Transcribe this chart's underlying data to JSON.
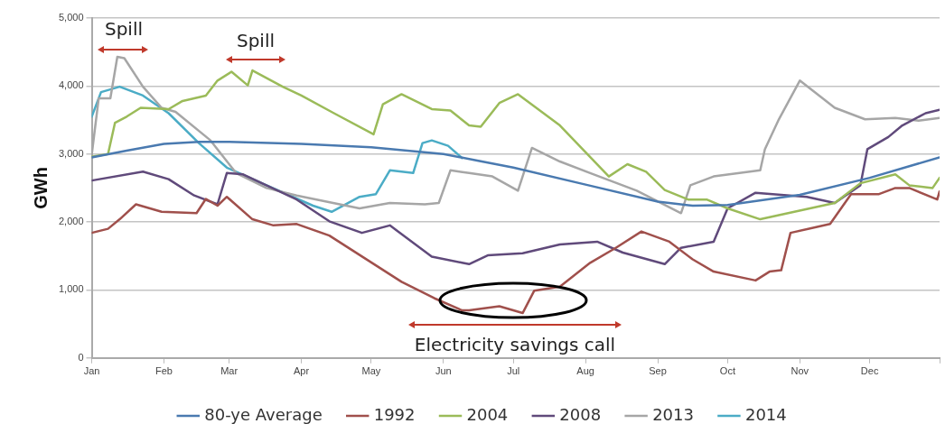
{
  "chart_data": {
    "type": "line",
    "ylabel": "GWh",
    "xlim": [
      "--01-01",
      "--12-31"
    ],
    "ylim": [
      0,
      5000
    ],
    "xticks": [
      {
        "value": "--01-01",
        "label": "Jan"
      },
      {
        "value": "--02-01",
        "label": "Feb"
      },
      {
        "value": "--03-01",
        "label": "Mar"
      },
      {
        "value": "--04-01",
        "label": "Apr"
      },
      {
        "value": "--05-01",
        "label": "May"
      },
      {
        "value": "--06-01",
        "label": "Jun"
      },
      {
        "value": "--07-01",
        "label": "Jul"
      },
      {
        "value": "--08-01",
        "label": "Aug"
      },
      {
        "value": "--09-01",
        "label": "Sep"
      },
      {
        "value": "--10-01",
        "label": "Oct"
      },
      {
        "value": "--11-01",
        "label": "Nov"
      },
      {
        "value": "--12-01",
        "label": "Dec"
      },
      {
        "value": "--12-31",
        "label": null
      }
    ],
    "yticks": [
      {
        "value": 0,
        "label": "0"
      },
      {
        "value": 1000,
        "label": "1,000"
      },
      {
        "value": 2000,
        "label": "2,000"
      },
      {
        "value": 3000,
        "label": "3,000"
      },
      {
        "value": 4000,
        "label": "4,000"
      },
      {
        "value": 5000,
        "label": "5,000"
      }
    ],
    "grid": "y",
    "legend": "bottom",
    "marker": "none",
    "line_style": "solid",
    "annotations": [
      "Spill",
      "Spill",
      "Electricity savings call"
    ],
    "series": [
      {
        "name": "80-ye Average",
        "color": "#4a7ab0",
        "x": [
          "--01-01",
          "--01-16",
          "--02-01",
          "--02-16",
          "--03-01",
          "--04-01",
          "--05-01",
          "--06-01",
          "--06-16",
          "--07-01",
          "--08-01",
          "--09-01",
          "--09-16",
          "--10-01",
          "--11-01",
          "--12-01",
          "--12-31"
        ],
        "values": [
          2950,
          3050,
          3150,
          3180,
          3180,
          3150,
          3100,
          3000,
          2900,
          2800,
          2550,
          2300,
          2240,
          2250,
          2400,
          2650,
          2950
        ]
      },
      {
        "name": "1992",
        "color": "#a0504c",
        "x": [
          "--01-01",
          "--01-08",
          "--01-13",
          "--01-20",
          "--01-31",
          "--02-15",
          "--02-19",
          "--02-24",
          "--02-28",
          "--03-11",
          "--03-20",
          "--03-30",
          "--04-13",
          "--05-14",
          "--05-28",
          "--06-09",
          "--06-12",
          "--06-25",
          "--07-05",
          "--07-10",
          "--07-21",
          "--08-03",
          "--08-14",
          "--08-25",
          "--09-06",
          "--09-16",
          "--09-25",
          "--10-13",
          "--10-19",
          "--10-24",
          "--10-28",
          "--11-14",
          "--11-23",
          "--12-05",
          "--12-12",
          "--12-18",
          "--12-30",
          "--12-31"
        ],
        "values": [
          1840,
          1900,
          2040,
          2260,
          2150,
          2130,
          2340,
          2240,
          2370,
          2040,
          1950,
          1970,
          1800,
          1120,
          880,
          700,
          700,
          760,
          660,
          990,
          1050,
          1400,
          1620,
          1860,
          1710,
          1450,
          1270,
          1140,
          1270,
          1290,
          1840,
          1970,
          2410,
          2410,
          2500,
          2500,
          2330,
          2450
        ]
      },
      {
        "name": "2004",
        "color": "#9bbb59",
        "x": [
          "--01-01",
          "--01-08",
          "--01-11",
          "--01-16",
          "--01-22",
          "--02-03",
          "--02-09",
          "--02-19",
          "--02-24",
          "--03-02",
          "--03-09",
          "--03-11",
          "--03-24",
          "--04-01",
          "--04-15",
          "--05-02",
          "--05-06",
          "--05-14",
          "--05-27",
          "--06-04",
          "--06-12",
          "--06-17",
          "--06-25",
          "--07-03",
          "--07-21",
          "--08-11",
          "--08-19",
          "--08-27",
          "--09-04",
          "--09-14",
          "--09-22",
          "--10-01",
          "--10-15",
          "--10-27",
          "--11-16",
          "--11-27",
          "--12-12",
          "--12-18",
          "--12-28",
          "--12-31"
        ],
        "values": [
          2960,
          3000,
          3460,
          3550,
          3680,
          3660,
          3780,
          3860,
          4080,
          4210,
          4010,
          4230,
          3990,
          3860,
          3600,
          3290,
          3730,
          3880,
          3660,
          3640,
          3420,
          3400,
          3750,
          3880,
          3420,
          2670,
          2850,
          2740,
          2470,
          2330,
          2330,
          2200,
          2040,
          2130,
          2280,
          2570,
          2700,
          2540,
          2500,
          2650
        ]
      },
      {
        "name": "2008",
        "color": "#604a7b",
        "x": [
          "--01-01",
          "--01-23",
          "--02-03",
          "--02-14",
          "--02-24",
          "--02-28",
          "--03-07",
          "--03-30",
          "--04-13",
          "--04-27",
          "--05-09",
          "--05-27",
          "--06-09",
          "--06-12",
          "--06-20",
          "--07-05",
          "--07-21",
          "--08-06",
          "--08-17",
          "--09-04",
          "--09-11",
          "--09-25",
          "--10-01",
          "--10-13",
          "--11-04",
          "--11-16",
          "--11-27",
          "--11-30",
          "--12-09",
          "--12-15",
          "--12-25",
          "--12-31"
        ],
        "values": [
          2610,
          2740,
          2630,
          2390,
          2260,
          2720,
          2700,
          2330,
          2010,
          1840,
          1950,
          1490,
          1400,
          1380,
          1510,
          1540,
          1670,
          1710,
          1550,
          1380,
          1620,
          1710,
          2200,
          2430,
          2370,
          2280,
          2540,
          3070,
          3250,
          3420,
          3600,
          3650
        ]
      },
      {
        "name": "2013",
        "color": "#a6a6a6",
        "x": [
          "--01-01",
          "--01-04",
          "--01-09",
          "--01-12",
          "--01-15",
          "--01-23",
          "--01-31",
          "--02-06",
          "--02-21",
          "--03-04",
          "--03-17",
          "--03-30",
          "--04-26",
          "--05-09",
          "--05-24",
          "--05-30",
          "--06-04",
          "--06-12",
          "--06-22",
          "--07-03",
          "--07-09",
          "--07-21",
          "--08-03",
          "--08-23",
          "--09-11",
          "--09-15",
          "--09-25",
          "--10-15",
          "--10-17",
          "--10-23",
          "--11-01",
          "--11-16",
          "--11-29",
          "--12-12",
          "--12-22",
          "--12-31"
        ],
        "values": [
          2990,
          3820,
          3820,
          4430,
          4410,
          3990,
          3680,
          3620,
          3200,
          2720,
          2500,
          2390,
          2200,
          2280,
          2260,
          2280,
          2760,
          2720,
          2670,
          2460,
          3090,
          2890,
          2720,
          2460,
          2130,
          2540,
          2670,
          2760,
          3070,
          3510,
          4080,
          3680,
          3510,
          3530,
          3490,
          3530
        ]
      },
      {
        "name": "2014",
        "color": "#4bacc6",
        "x": [
          "--01-01",
          "--01-05",
          "--01-13",
          "--01-23",
          "--02-03",
          "--02-16",
          "--02-28",
          "--03-17",
          "--04-06",
          "--04-14",
          "--04-26",
          "--05-03",
          "--05-09",
          "--05-19",
          "--05-23",
          "--05-27",
          "--06-03",
          "--06-09"
        ],
        "values": [
          3550,
          3910,
          3990,
          3860,
          3600,
          3160,
          2800,
          2540,
          2240,
          2150,
          2370,
          2410,
          2760,
          2720,
          3160,
          3200,
          3120,
          2940
        ]
      }
    ]
  }
}
